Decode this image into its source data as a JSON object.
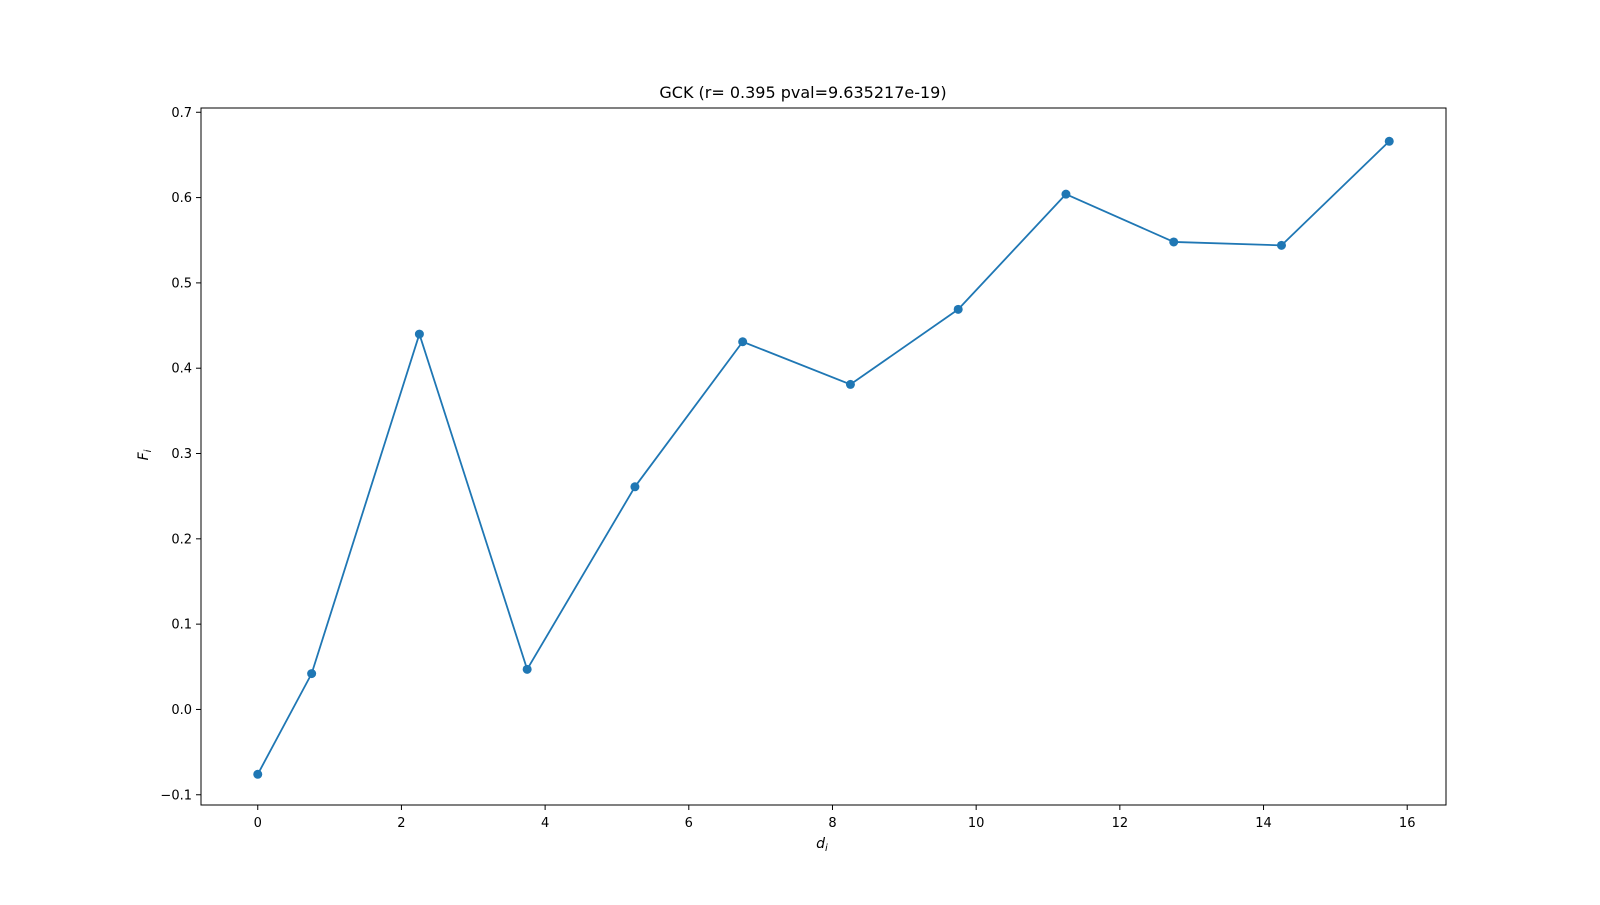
{
  "chart_data": {
    "type": "line",
    "title": "GCK (r= 0.395 pval=9.635217e-19)",
    "xlabel": "d",
    "xlabel_sub": "i",
    "ylabel": "F",
    "ylabel_sub": "i",
    "xlim": [
      -0.79,
      16.54
    ],
    "ylim": [
      -0.112,
      0.705
    ],
    "xticks": [
      0,
      2,
      4,
      6,
      8,
      10,
      12,
      14,
      16
    ],
    "xtick_labels": [
      "0",
      "2",
      "4",
      "6",
      "8",
      "10",
      "12",
      "14",
      "16"
    ],
    "yticks": [
      -0.1,
      0.0,
      0.1,
      0.2,
      0.3,
      0.4,
      0.5,
      0.6,
      0.7
    ],
    "ytick_labels": [
      "−0.1",
      "0.0",
      "0.1",
      "0.2",
      "0.3",
      "0.4",
      "0.5",
      "0.6",
      "0.7"
    ],
    "grid": false,
    "series": [
      {
        "color": "#1f77b4",
        "marker": "circle",
        "x": [
          0.0,
          0.75,
          2.25,
          3.75,
          5.25,
          6.75,
          8.25,
          9.75,
          11.25,
          12.75,
          14.25,
          15.75
        ],
        "y": [
          -0.076,
          0.042,
          0.44,
          0.047,
          0.261,
          0.431,
          0.381,
          0.469,
          0.604,
          0.548,
          0.544,
          0.666
        ]
      }
    ]
  }
}
